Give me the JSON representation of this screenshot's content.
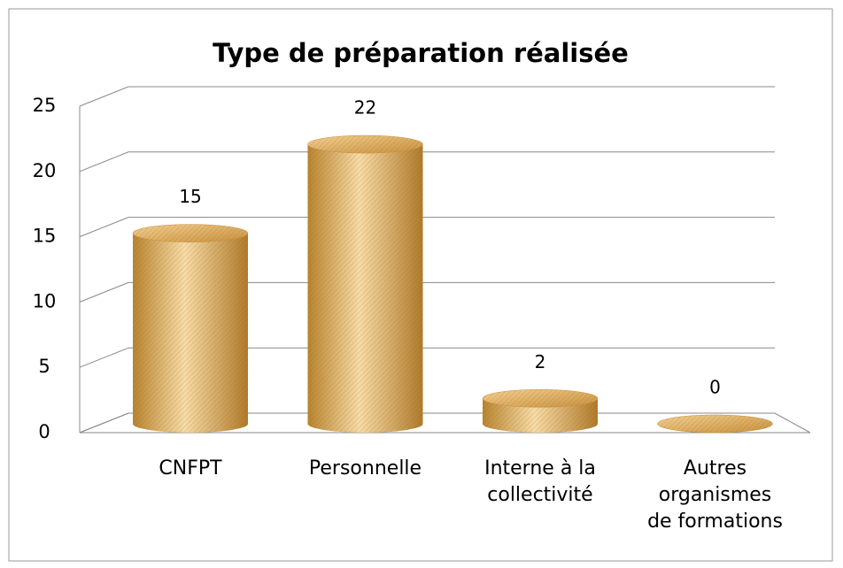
{
  "chart_data": {
    "type": "bar",
    "title": "Type de préparation réalisée",
    "categories": [
      "CNFPT",
      "Personnelle",
      "Interne à la collectivité",
      "Autres organismes de formations"
    ],
    "values": [
      15,
      22,
      2,
      0
    ],
    "color": "#d9a85a",
    "ylim": [
      0,
      25
    ],
    "yticks": [
      0,
      5,
      10,
      15,
      20,
      25
    ],
    "grid": true
  }
}
